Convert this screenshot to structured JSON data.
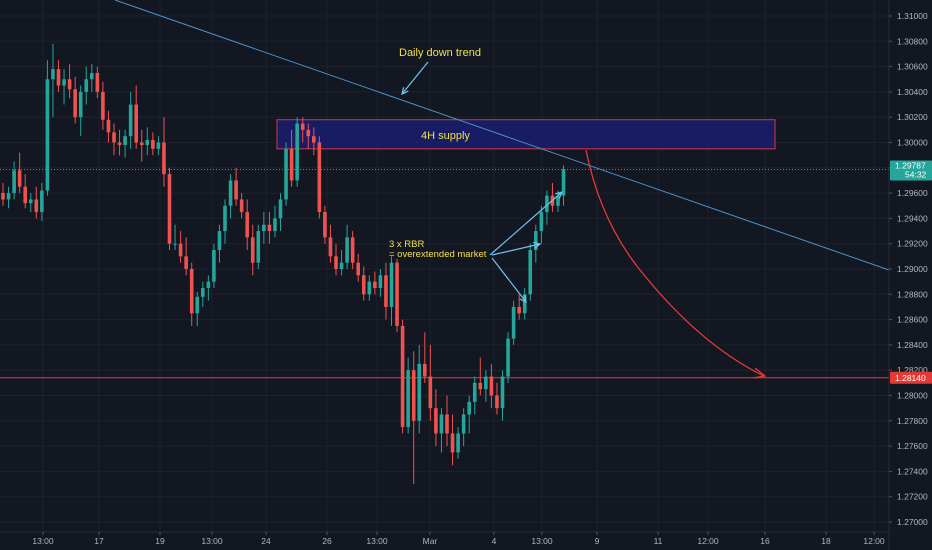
{
  "chart_data": {
    "type": "candlestick",
    "y_axis": {
      "ticks": [
        "1.31000",
        "1.30800",
        "1.30600",
        "1.30400",
        "1.30200",
        "1.30000",
        "1.29800",
        "1.29600",
        "1.29400",
        "1.29200",
        "1.29000",
        "1.28800",
        "1.28600",
        "1.28400",
        "1.28200",
        "1.28000",
        "1.27800",
        "1.27600",
        "1.27400",
        "1.27200",
        "1.27000"
      ],
      "ylim": [
        1.2693,
        1.3112
      ],
      "position": "right"
    },
    "x_axis": {
      "ticks": [
        "13:00",
        "17",
        "19",
        "13:00",
        "24",
        "26",
        "13:00",
        "Mar",
        "4",
        "13:00",
        "9",
        "11",
        "12:00",
        "16",
        "18",
        "12:00"
      ]
    },
    "grid": true,
    "price_labels": {
      "current": {
        "value": 1.29787,
        "label": "1.29787",
        "sub": "54:32",
        "color": "#26a69a"
      },
      "target": {
        "value": 1.2814,
        "label": "1.28140",
        "color": "#e53935"
      }
    },
    "zones": [
      {
        "label": "4H supply",
        "top": 1.3018,
        "bottom": 1.2995,
        "color": "#1a1d6e",
        "border": "#d23a4a"
      }
    ],
    "horizontal_lines": [
      {
        "value": 1.2814,
        "color": "#e53935"
      },
      {
        "value": 1.29787,
        "color": "#26a69a",
        "style": "dotted"
      }
    ],
    "trendline": {
      "label": "Daily down trend",
      "from": [
        0,
        1.3149
      ],
      "to": [
        148,
        1.2902
      ],
      "color": "#4a90c8"
    },
    "annotations": [
      {
        "text": "Daily down trend",
        "value": 1.3066
      },
      {
        "text": "3 x RBR",
        "value": 1.2925
      },
      {
        "text": "= overextended market",
        "value": 1.2912
      },
      {
        "text": "4H supply",
        "value": 1.3004
      }
    ],
    "projection": {
      "from": [
        98,
        1.2998
      ],
      "to": [
        128,
        1.2814
      ],
      "color": "#e53935"
    },
    "candles": [
      [
        1.296,
        1.2968,
        1.295,
        1.2955
      ],
      [
        1.2955,
        1.2965,
        1.2948,
        1.296
      ],
      [
        1.296,
        1.2985,
        1.2955,
        1.2978
      ],
      [
        1.2978,
        1.2992,
        1.296,
        1.2965
      ],
      [
        1.2965,
        1.2975,
        1.2948,
        1.2952
      ],
      [
        1.2952,
        1.296,
        1.2945,
        1.2955
      ],
      [
        1.2955,
        1.2965,
        1.294,
        1.2945
      ],
      [
        1.2945,
        1.2968,
        1.2938,
        1.2962
      ],
      [
        1.2962,
        1.3065,
        1.2958,
        1.305
      ],
      [
        1.305,
        1.3078,
        1.302,
        1.3058
      ],
      [
        1.3058,
        1.3065,
        1.304,
        1.3045
      ],
      [
        1.3045,
        1.3058,
        1.303,
        1.305
      ],
      [
        1.305,
        1.3062,
        1.3035,
        1.3042
      ],
      [
        1.3042,
        1.3052,
        1.3015,
        1.302
      ],
      [
        1.302,
        1.3045,
        1.3005,
        1.304
      ],
      [
        1.304,
        1.306,
        1.303,
        1.305
      ],
      [
        1.305,
        1.3062,
        1.304,
        1.3055
      ],
      [
        1.3055,
        1.306,
        1.3035,
        1.304
      ],
      [
        1.304,
        1.3048,
        1.301,
        1.3018
      ],
      [
        1.3018,
        1.3025,
        1.3,
        1.3008
      ],
      [
        1.3008,
        1.3015,
        1.299,
        1.3
      ],
      [
        1.3,
        1.301,
        1.299,
        1.2998
      ],
      [
        1.2998,
        1.301,
        1.2988,
        1.3005
      ],
      [
        1.3005,
        1.304,
        1.2995,
        1.303
      ],
      [
        1.303,
        1.3045,
        1.2995,
        1.3
      ],
      [
        1.3,
        1.301,
        1.2985,
        1.2998
      ],
      [
        1.2998,
        1.3012,
        1.299,
        1.3002
      ],
      [
        1.3002,
        1.3008,
        1.299,
        1.2995
      ],
      [
        1.2995,
        1.3005,
        1.299,
        1.3
      ],
      [
        1.3,
        1.302,
        1.2965,
        1.2975
      ],
      [
        1.2975,
        1.298,
        1.2915,
        1.292
      ],
      [
        1.292,
        1.2935,
        1.2915,
        1.292
      ],
      [
        1.292,
        1.293,
        1.2905,
        1.291
      ],
      [
        1.291,
        1.2925,
        1.2895,
        1.29
      ],
      [
        1.29,
        1.2905,
        1.2855,
        1.2865
      ],
      [
        1.2865,
        1.2882,
        1.2855,
        1.2878
      ],
      [
        1.2878,
        1.289,
        1.287,
        1.2885
      ],
      [
        1.2885,
        1.2895,
        1.2875,
        1.289
      ],
      [
        1.289,
        1.292,
        1.2885,
        1.2915
      ],
      [
        1.2915,
        1.2935,
        1.2905,
        1.293
      ],
      [
        1.293,
        1.2955,
        1.292,
        1.295
      ],
      [
        1.295,
        1.2975,
        1.294,
        1.297
      ],
      [
        1.297,
        1.298,
        1.295,
        1.2955
      ],
      [
        1.2955,
        1.296,
        1.294,
        1.2945
      ],
      [
        1.2945,
        1.2955,
        1.2915,
        1.2925
      ],
      [
        1.2925,
        1.2935,
        1.2895,
        1.2905
      ],
      [
        1.2905,
        1.2935,
        1.29,
        1.293
      ],
      [
        1.293,
        1.2945,
        1.292,
        1.2935
      ],
      [
        1.2935,
        1.2945,
        1.292,
        1.293
      ],
      [
        1.293,
        1.295,
        1.2925,
        1.294
      ],
      [
        1.294,
        1.296,
        1.293,
        1.2955
      ],
      [
        1.2955,
        1.3,
        1.295,
        1.2995
      ],
      [
        1.2995,
        1.301,
        1.2965,
        1.297
      ],
      [
        1.297,
        1.302,
        1.2965,
        1.3015
      ],
      [
        1.3015,
        1.302,
        1.3,
        1.301
      ],
      [
        1.301,
        1.3015,
        1.2995,
        1.3005
      ],
      [
        1.3005,
        1.3012,
        1.299,
        1.3
      ],
      [
        1.3,
        1.3005,
        1.294,
        1.2945
      ],
      [
        1.2945,
        1.295,
        1.292,
        1.2925
      ],
      [
        1.2925,
        1.2935,
        1.2905,
        1.291
      ],
      [
        1.291,
        1.292,
        1.2895,
        1.29
      ],
      [
        1.29,
        1.2915,
        1.2895,
        1.2905
      ],
      [
        1.2905,
        1.2935,
        1.29,
        1.2925
      ],
      [
        1.2925,
        1.293,
        1.29,
        1.2905
      ],
      [
        1.2905,
        1.2912,
        1.289,
        1.2895
      ],
      [
        1.2895,
        1.2902,
        1.2875,
        1.288
      ],
      [
        1.288,
        1.2895,
        1.2875,
        1.289
      ],
      [
        1.289,
        1.2898,
        1.288,
        1.2885
      ],
      [
        1.2885,
        1.29,
        1.2878,
        1.2895
      ],
      [
        1.2895,
        1.2905,
        1.286,
        1.287
      ],
      [
        1.287,
        1.291,
        1.2855,
        1.2905
      ],
      [
        1.2905,
        1.2908,
        1.285,
        1.2855
      ],
      [
        1.2855,
        1.286,
        1.277,
        1.2775
      ],
      [
        1.2775,
        1.283,
        1.277,
        1.282
      ],
      [
        1.282,
        1.2835,
        1.273,
        1.278
      ],
      [
        1.278,
        1.284,
        1.277,
        1.2825
      ],
      [
        1.2825,
        1.285,
        1.281,
        1.2815
      ],
      [
        1.2815,
        1.284,
        1.278,
        1.279
      ],
      [
        1.279,
        1.2805,
        1.276,
        1.277
      ],
      [
        1.277,
        1.279,
        1.2755,
        1.2785
      ],
      [
        1.2785,
        1.28,
        1.276,
        1.277
      ],
      [
        1.277,
        1.2785,
        1.2745,
        1.2755
      ],
      [
        1.2755,
        1.2775,
        1.275,
        1.277
      ],
      [
        1.277,
        1.279,
        1.276,
        1.2785
      ],
      [
        1.2785,
        1.28,
        1.277,
        1.2795
      ],
      [
        1.2795,
        1.2815,
        1.2785,
        1.281
      ],
      [
        1.281,
        1.283,
        1.28,
        1.2805
      ],
      [
        1.2805,
        1.282,
        1.2795,
        1.2815
      ],
      [
        1.2815,
        1.2825,
        1.279,
        1.28
      ],
      [
        1.28,
        1.281,
        1.2785,
        1.279
      ],
      [
        1.279,
        1.282,
        1.278,
        1.2815
      ],
      [
        1.2815,
        1.285,
        1.281,
        1.2845
      ],
      [
        1.2845,
        1.2875,
        1.284,
        1.287
      ],
      [
        1.287,
        1.288,
        1.286,
        1.2865
      ],
      [
        1.2865,
        1.2885,
        1.286,
        1.288
      ],
      [
        1.288,
        1.292,
        1.2875,
        1.2915
      ],
      [
        1.2915,
        1.2935,
        1.2905,
        1.293
      ],
      [
        1.293,
        1.295,
        1.292,
        1.2945
      ],
      [
        1.2945,
        1.2962,
        1.2935,
        1.2958
      ],
      [
        1.2958,
        1.2968,
        1.2945,
        1.295
      ],
      [
        1.295,
        1.2962,
        1.2945,
        1.2958
      ],
      [
        1.2958,
        1.2982,
        1.295,
        1.2979
      ]
    ]
  }
}
